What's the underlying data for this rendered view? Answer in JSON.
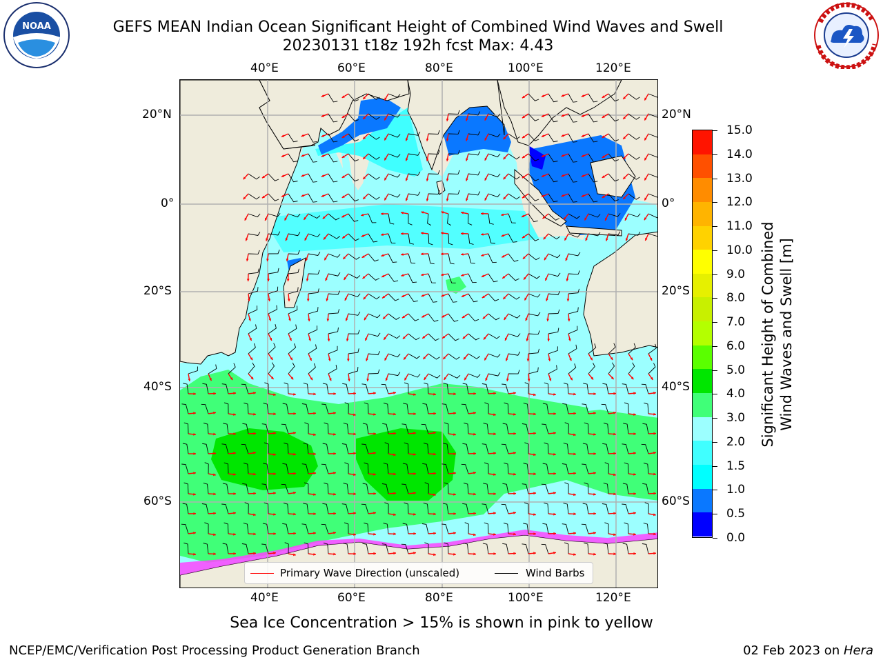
{
  "header": {
    "title_line1": "GEFS MEAN Indian Ocean Significant Height of Combined Wind Waves and Swell",
    "title_line2": "20230131 t18z 192h fcst   Max: 4.43",
    "left_logo_text": "NOAA",
    "left_logo_ring": "NATIONAL OCEANIC AND ATMOSPHERIC ADMINISTRATION · U.S. DEPARTMENT OF COMMERCE",
    "right_logo_ring": "NATIONAL WEATHER SERVICE"
  },
  "map": {
    "lon_labels_top": [
      "40°E",
      "60°E",
      "80°E",
      "100°E",
      "120°E"
    ],
    "lon_labels_bottom": [
      "40°E",
      "60°E",
      "80°E",
      "100°E",
      "120°E"
    ],
    "lat_labels_left": [
      "20°N",
      "0°",
      "20°S",
      "40°S",
      "60°S"
    ],
    "lat_labels_right": [
      "20°N",
      "0°",
      "20°S",
      "40°S",
      "60°S"
    ],
    "land_color": "#efecdc",
    "ice_colors": [
      "#ff44ff",
      "#ffaa44",
      "#ffff44"
    ]
  },
  "legend": {
    "wave_label": "Primary Wave Direction (unscaled)",
    "wind_label": "Wind Barbs",
    "wave_color": "#ff0000",
    "wind_color": "#000000"
  },
  "colorbar": {
    "title_line1": "Significant Height of Combined",
    "title_line2": "Wind Waves and Swell [m]",
    "tick_labels": [
      "0.0",
      "0.5",
      "1.0",
      "1.5",
      "2.0",
      "3.0",
      "4.0",
      "5.0",
      "6.0",
      "7.0",
      "8.0",
      "9.0",
      "10.0",
      "11.0",
      "12.0",
      "13.0",
      "14.0",
      "15.0"
    ],
    "colors": [
      "#0000ff",
      "#0a78ff",
      "#00ffff",
      "#40ffff",
      "#9cffff",
      "#40ff78",
      "#00e600",
      "#5aff00",
      "#b4ff00",
      "#c8f000",
      "#e6f000",
      "#ffff00",
      "#ffd200",
      "#ffb400",
      "#ff8c00",
      "#ff5000",
      "#ff1400"
    ]
  },
  "footer": {
    "ice_note": "Sea Ice Concentration > 15% is shown in pink to yellow",
    "credit": "NCEP/EMC/Verification Post Processing Product Generation Branch",
    "date_prefix": "02 Feb 2023 on ",
    "machine": "Hera"
  }
}
